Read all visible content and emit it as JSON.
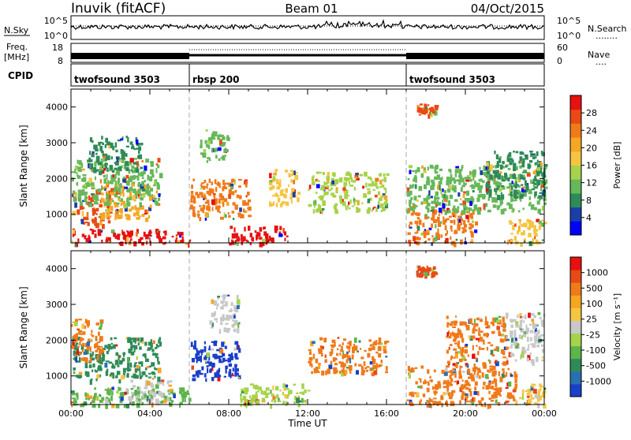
{
  "header": {
    "radar": "Inuvik (fitACF)",
    "beam": "Beam 01",
    "date": "04/Oct/2015"
  },
  "noise_panel": {
    "left_label": "N.Sky",
    "left_ticks": [
      "10^5",
      "10^0"
    ],
    "right_ticks": [
      "10^5",
      "10^0"
    ],
    "right_label": "N.Search",
    "right_label_marker": "........"
  },
  "freq_panel": {
    "left_label_1": "Freq.",
    "left_label_2": "[MHz]",
    "left_ticks": [
      "18",
      "8"
    ],
    "right_ticks": [
      "60",
      "0"
    ],
    "right_label": "Nave",
    "right_label_marker": "...."
  },
  "cpid_panel": {
    "label": "CPID",
    "segments": [
      {
        "name": "twofsound 3503",
        "start": 0,
        "end": 6
      },
      {
        "name": "rbsp 200",
        "start": 6,
        "end": 17
      },
      {
        "name": "twofsound 3503",
        "start": 17,
        "end": 24
      }
    ]
  },
  "chart_data": [
    {
      "type": "heatmap",
      "name": "power",
      "ylabel": "Slant Range [km]",
      "yticks": [
        "1000",
        "2000",
        "3000",
        "4000"
      ],
      "ylim": [
        200,
        4500
      ],
      "xlim": [
        0,
        24
      ],
      "colorbar": {
        "label": "Power [dB]",
        "ticks": [
          "4",
          "8",
          "12",
          "16",
          "20",
          "24",
          "28"
        ],
        "colors": [
          "#0000ff",
          "#1a3fa8",
          "#2e8b57",
          "#66b85a",
          "#a6d34a",
          "#f5c542",
          "#f5a623",
          "#f07a1a",
          "#e84a15",
          "#e81010"
        ]
      },
      "blobs": [
        {
          "t0": 0.0,
          "t1": 6.0,
          "r0": 200,
          "r1": 600,
          "c": "#e81010"
        },
        {
          "t0": 0.0,
          "t1": 2.0,
          "r0": 700,
          "r1": 1700,
          "c": "#e84a15"
        },
        {
          "t0": 1.5,
          "t1": 4.0,
          "r0": 900,
          "r1": 1900,
          "c": "#f5a623"
        },
        {
          "t0": 0.0,
          "t1": 4.5,
          "r0": 1300,
          "r1": 2600,
          "c": "#66b85a"
        },
        {
          "t0": 0.8,
          "t1": 3.5,
          "r0": 2200,
          "r1": 3200,
          "c": "#2e8b57"
        },
        {
          "t0": 6.0,
          "t1": 9.0,
          "r0": 900,
          "r1": 2000,
          "c": "#f07a1a"
        },
        {
          "t0": 6.5,
          "t1": 8.0,
          "r0": 2500,
          "r1": 3400,
          "c": "#66b85a"
        },
        {
          "t0": 8.0,
          "t1": 11.0,
          "r0": 200,
          "r1": 700,
          "c": "#e81010"
        },
        {
          "t0": 10.0,
          "t1": 11.5,
          "r0": 1300,
          "r1": 2300,
          "c": "#f5c542"
        },
        {
          "t0": 12.0,
          "t1": 16.0,
          "r0": 1100,
          "r1": 2200,
          "c": "#a6d34a"
        },
        {
          "t0": 17.0,
          "t1": 20.5,
          "r0": 200,
          "r1": 1200,
          "c": "#f07a1a"
        },
        {
          "t0": 17.0,
          "t1": 24.0,
          "r0": 1100,
          "r1": 2400,
          "c": "#66b85a"
        },
        {
          "t0": 21.0,
          "t1": 24.0,
          "r0": 1500,
          "r1": 2800,
          "c": "#2e8b57"
        },
        {
          "t0": 22.0,
          "t1": 24.0,
          "r0": 200,
          "r1": 900,
          "c": "#f5c542"
        },
        {
          "t0": 17.5,
          "t1": 18.5,
          "r0": 3800,
          "r1": 4100,
          "c": "#e84a15"
        }
      ]
    },
    {
      "type": "heatmap",
      "name": "velocity",
      "ylabel": "Slant Range [km]",
      "yticks": [
        "1000",
        "2000",
        "3000",
        "4000"
      ],
      "ylim": [
        200,
        4500
      ],
      "xlim": [
        0,
        24
      ],
      "xticks": [
        "00:00",
        "04:00",
        "08:00",
        "12:00",
        "16:00",
        "20:00",
        "00:00"
      ],
      "xlabel": "Time UT",
      "colorbar": {
        "label": "Velocity [m s⁻¹]",
        "ticks": [
          "1000",
          "500",
          "100",
          "25",
          "-25",
          "-100",
          "-500",
          "-1000"
        ],
        "colors": [
          "#1a3fc8",
          "#2a6fb0",
          "#2e8b57",
          "#5ab54a",
          "#a6d34a",
          "#c8c8c8",
          "#f5c542",
          "#f5a623",
          "#f07a1a",
          "#e84a15",
          "#e81010"
        ]
      },
      "blobs": [
        {
          "t0": 0.0,
          "t1": 6.0,
          "r0": 200,
          "r1": 700,
          "c": "#5ab54a"
        },
        {
          "t0": 2.5,
          "t1": 5.0,
          "r0": 300,
          "r1": 900,
          "c": "#c8c8c8"
        },
        {
          "t0": 0.0,
          "t1": 4.5,
          "r0": 900,
          "r1": 2100,
          "c": "#2e8b57"
        },
        {
          "t0": 0.0,
          "t1": 1.5,
          "r0": 1500,
          "r1": 2600,
          "c": "#f07a1a"
        },
        {
          "t0": 6.0,
          "t1": 8.5,
          "r0": 900,
          "r1": 2000,
          "c": "#1a3fc8"
        },
        {
          "t0": 7.0,
          "t1": 8.5,
          "r0": 2300,
          "r1": 3300,
          "c": "#c8c8c8"
        },
        {
          "t0": 8.5,
          "t1": 12.0,
          "r0": 200,
          "r1": 800,
          "c": "#a6d34a"
        },
        {
          "t0": 12.0,
          "t1": 16.0,
          "r0": 1100,
          "r1": 2100,
          "c": "#f07a1a"
        },
        {
          "t0": 17.0,
          "t1": 22.5,
          "r0": 200,
          "r1": 1300,
          "c": "#f07a1a"
        },
        {
          "t0": 19.0,
          "t1": 22.0,
          "r0": 1300,
          "r1": 2700,
          "c": "#f07a1a"
        },
        {
          "t0": 22.0,
          "t1": 24.0,
          "r0": 1400,
          "r1": 2800,
          "c": "#c8c8c8"
        },
        {
          "t0": 22.5,
          "t1": 24.0,
          "r0": 200,
          "r1": 800,
          "c": "#f5c542"
        },
        {
          "t0": 17.5,
          "t1": 18.5,
          "r0": 3800,
          "r1": 4100,
          "c": "#e84a15"
        }
      ]
    }
  ]
}
